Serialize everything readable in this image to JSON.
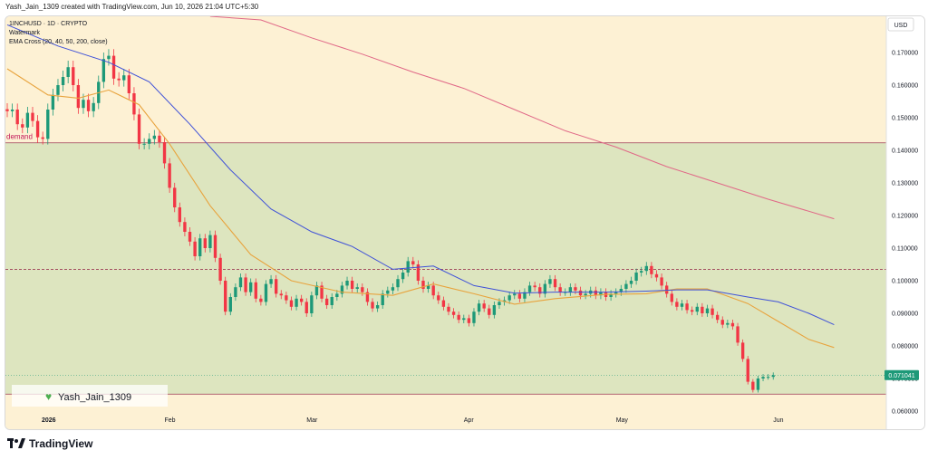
{
  "header": {
    "created_by": "Yash_Jain_1309 created with TradingView.com, Jun 10, 2026 21:04 UTC+5:30"
  },
  "legend": {
    "symbol": "1INCHUSD · 1D · CRYPTO",
    "watermark": "Watermark",
    "indicator": "EMA Cross (20, 40, 50, 200, close)"
  },
  "zone_label": "demand",
  "watermark_text": "Yash_Jain_1309",
  "currency": "USD",
  "brand": "TradingView",
  "colors": {
    "upper_bg": "#fdf1d4",
    "zone_bg": "#dde5bf",
    "up": "#1d9978",
    "down": "#f23645",
    "ema20": "#e8a33d",
    "ema50": "#3f51d8",
    "ema200": "#e06887",
    "zone_line": "#9c3b54",
    "price_badge": "#1d9978"
  },
  "chart_data": {
    "type": "candlestick",
    "symbol": "1INCHUSD",
    "interval": "1D",
    "ylim": [
      0.06,
      0.18
    ],
    "y_ticks": [
      "0.060000",
      "0.070000",
      "0.080000",
      "0.090000",
      "0.100000",
      "0.110000",
      "0.120000",
      "0.130000",
      "0.140000",
      "0.150000",
      "0.160000",
      "0.170000",
      "0.180000"
    ],
    "x_ticks": [
      {
        "label": "2026",
        "day": 0
      },
      {
        "label": "Feb",
        "day": 31
      },
      {
        "label": "Mar",
        "day": 59
      },
      {
        "label": "Apr",
        "day": 90
      },
      {
        "label": "May",
        "day": 120
      },
      {
        "label": "Jun",
        "day": 151
      }
    ],
    "last_price": "0.071041",
    "zone": {
      "top": 0.1423,
      "bottom": 0.0652
    },
    "resistance_line": 0.1035,
    "ohlc_close": [
      0.152,
      0.1525,
      0.148,
      0.147,
      0.1515,
      0.149,
      0.144,
      0.1435,
      0.1525,
      0.157,
      0.16,
      0.1625,
      0.1655,
      0.16,
      0.153,
      0.1555,
      0.152,
      0.1545,
      0.161,
      0.168,
      0.169,
      0.162,
      0.1615,
      0.163,
      0.1575,
      0.151,
      0.142,
      0.142,
      0.1435,
      0.1445,
      0.1425,
      0.136,
      0.1285,
      0.1225,
      0.118,
      0.115,
      0.112,
      0.1075,
      0.113,
      0.11,
      0.114,
      0.107,
      0.1,
      0.0905,
      0.095,
      0.098,
      0.101,
      0.0965,
      0.0995,
      0.0945,
      0.0935,
      0.099,
      0.1005,
      0.096,
      0.0955,
      0.094,
      0.092,
      0.0945,
      0.0935,
      0.09,
      0.0955,
      0.0985,
      0.0945,
      0.0925,
      0.095,
      0.096,
      0.0985,
      0.1,
      0.0975,
      0.098,
      0.0965,
      0.0935,
      0.0915,
      0.0925,
      0.096,
      0.097,
      0.098,
      0.1005,
      0.1025,
      0.106,
      0.105,
      0.1,
      0.0975,
      0.0985,
      0.0955,
      0.094,
      0.092,
      0.0905,
      0.0895,
      0.088,
      0.0885,
      0.087,
      0.0905,
      0.093,
      0.0915,
      0.0895,
      0.0925,
      0.0935,
      0.094,
      0.0955,
      0.096,
      0.0945,
      0.0965,
      0.0985,
      0.098,
      0.096,
      0.099,
      0.1005,
      0.098,
      0.0965,
      0.0965,
      0.098,
      0.097,
      0.0955,
      0.096,
      0.097,
      0.0955,
      0.0965,
      0.095,
      0.096,
      0.0965,
      0.0975,
      0.099,
      0.1,
      0.1025,
      0.103,
      0.1045,
      0.102,
      0.101,
      0.0985,
      0.096,
      0.0935,
      0.092,
      0.093,
      0.091,
      0.0905,
      0.092,
      0.09,
      0.0915,
      0.0895,
      0.088,
      0.0865,
      0.087,
      0.086,
      0.081,
      0.076,
      0.069,
      0.0665,
      0.07,
      0.0705,
      0.0705,
      0.071
    ],
    "ema20_samples": [
      [
        0,
        0.165
      ],
      [
        8,
        0.157
      ],
      [
        14,
        0.156
      ],
      [
        20,
        0.1585
      ],
      [
        26,
        0.154
      ],
      [
        32,
        0.142
      ],
      [
        40,
        0.123
      ],
      [
        48,
        0.108
      ],
      [
        56,
        0.1
      ],
      [
        66,
        0.0965
      ],
      [
        76,
        0.0955
      ],
      [
        84,
        0.099
      ],
      [
        92,
        0.096
      ],
      [
        100,
        0.0928
      ],
      [
        108,
        0.0945
      ],
      [
        118,
        0.0958
      ],
      [
        126,
        0.096
      ],
      [
        132,
        0.0975
      ],
      [
        138,
        0.0975
      ],
      [
        146,
        0.093
      ],
      [
        152,
        0.0875
      ],
      [
        158,
        0.082
      ],
      [
        163,
        0.0795
      ]
    ],
    "ema50_samples": [
      [
        0,
        0.1785
      ],
      [
        10,
        0.172
      ],
      [
        20,
        0.167
      ],
      [
        28,
        0.161
      ],
      [
        36,
        0.148
      ],
      [
        44,
        0.134
      ],
      [
        52,
        0.122
      ],
      [
        60,
        0.115
      ],
      [
        68,
        0.1105
      ],
      [
        76,
        0.1035
      ],
      [
        84,
        0.1045
      ],
      [
        92,
        0.0985
      ],
      [
        100,
        0.0962
      ],
      [
        108,
        0.0965
      ],
      [
        118,
        0.0965
      ],
      [
        126,
        0.0968
      ],
      [
        132,
        0.0972
      ],
      [
        138,
        0.0972
      ],
      [
        146,
        0.095
      ],
      [
        152,
        0.0935
      ],
      [
        158,
        0.09
      ],
      [
        163,
        0.0865
      ]
    ],
    "ema200_samples": [
      [
        40,
        0.188
      ],
      [
        50,
        0.18
      ],
      [
        60,
        0.1745
      ],
      [
        70,
        0.1695
      ],
      [
        80,
        0.164
      ],
      [
        90,
        0.159
      ],
      [
        100,
        0.1525
      ],
      [
        110,
        0.146
      ],
      [
        120,
        0.141
      ],
      [
        130,
        0.135
      ],
      [
        140,
        0.13
      ],
      [
        150,
        0.125
      ],
      [
        163,
        0.119
      ]
    ]
  }
}
